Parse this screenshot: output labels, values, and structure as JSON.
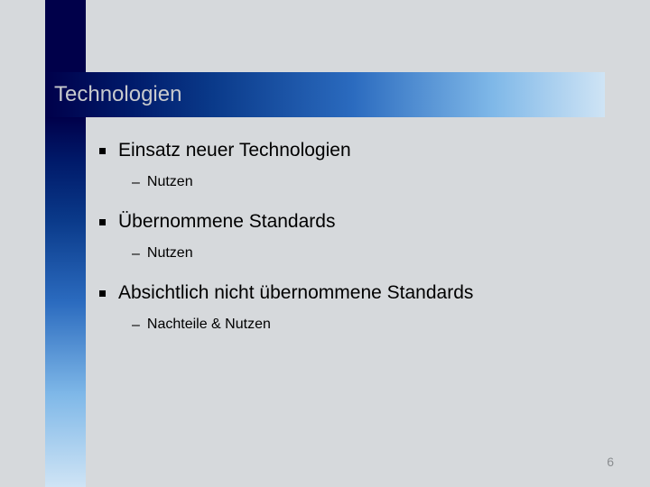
{
  "slide": {
    "title": "Technologien",
    "title_color": "#c8cacd",
    "title_fontsize": 24,
    "background_color": "#d6d9dc",
    "title_bar_gradient": [
      "#00004a",
      "#001a6a",
      "#0a3a8a",
      "#2b6bbf",
      "#7fb8e8",
      "#cfe4f5"
    ],
    "left_stripe_gradient": [
      "#00004a",
      "#001a6a",
      "#0a3a8a",
      "#2b6bbf",
      "#7fb8e8",
      "#cfe4f5"
    ],
    "bullets": [
      {
        "text": "Einsatz neuer Technologien",
        "sub": [
          {
            "text": "Nutzen"
          }
        ]
      },
      {
        "text": "Übernommene Standards",
        "sub": [
          {
            "text": "Nutzen"
          }
        ]
      },
      {
        "text": "Absichtlich nicht übernommene Standards",
        "sub": [
          {
            "text": "Nachteile & Nutzen"
          }
        ]
      }
    ],
    "main_fontsize": 21,
    "sub_fontsize": 16,
    "page_number": "6",
    "page_number_color": "#8a8d90"
  }
}
